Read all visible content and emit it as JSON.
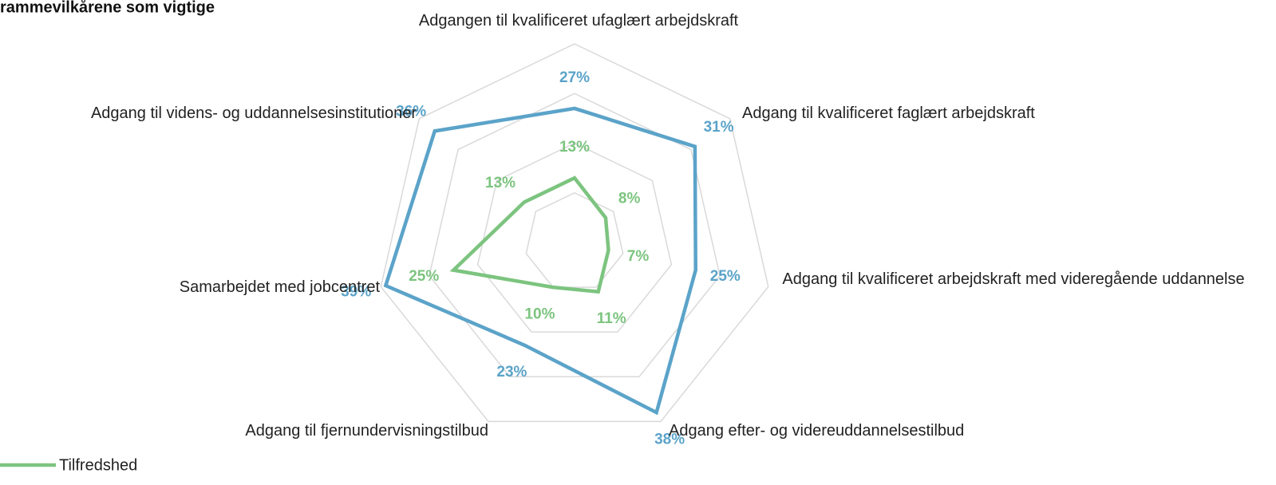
{
  "chart_data": {
    "type": "radar",
    "title": "rammevilkårene som vigtige",
    "categories": [
      "Adgangen til kvalificeret ufaglært arbejdskraft",
      "Adgang til kvalificeret faglært arbejdskraft",
      "Adgang til kvalificeret arbejdskraft med videregående uddannelse",
      "Adgang efter- og videreuddannelsestilbud",
      "Adgang til fjernundervisningstilbud",
      "Samarbejdet med jobcentret",
      "Adgang til videns- og uddannelsesinstitutioner"
    ],
    "series": [
      {
        "color": "#5ba3c9",
        "values": [
          27,
          31,
          25,
          38,
          23,
          39,
          36
        ],
        "value_labels": [
          "27%",
          "31%",
          "25%",
          "38%",
          "23%",
          "39%",
          "36%"
        ]
      },
      {
        "name": "Tilfredshed",
        "color": "#7cc47f",
        "values": [
          13,
          8,
          7,
          11,
          10,
          25,
          13
        ],
        "value_labels": [
          "13%",
          "8%",
          "7%",
          "11%",
          "10%",
          "25%",
          "13%"
        ]
      }
    ],
    "ylim": [
      0,
      40
    ],
    "yticks": [
      10,
      20,
      30,
      40
    ],
    "grid": true,
    "legend": "bottom-left"
  }
}
